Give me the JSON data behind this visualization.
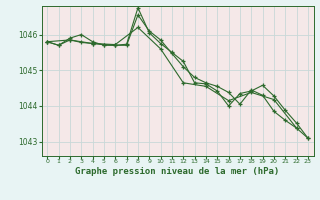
{
  "background_color": "#e8f4f4",
  "plot_bg_color": "#f5e8e8",
  "grid_color": "#c8d8d8",
  "line_color": "#2d6a2d",
  "title": "Graphe pression niveau de la mer (hPa)",
  "xlabel_fontsize": 6.5,
  "ylim": [
    1042.6,
    1046.8
  ],
  "xlim": [
    -0.5,
    23.5
  ],
  "yticks": [
    1043,
    1044,
    1045,
    1046
  ],
  "xticks": [
    0,
    1,
    2,
    3,
    4,
    5,
    6,
    7,
    8,
    9,
    10,
    11,
    12,
    13,
    14,
    15,
    16,
    17,
    18,
    19,
    20,
    21,
    22,
    23
  ],
  "series": [
    {
      "x": [
        0,
        1,
        2,
        3,
        4,
        5,
        6,
        7,
        8,
        9,
        10,
        11,
        12,
        13,
        14,
        15,
        16,
        17,
        18,
        19,
        20,
        21,
        22,
        23
      ],
      "y": [
        1045.8,
        1045.7,
        1045.9,
        1046.0,
        1045.8,
        1045.7,
        1045.7,
        1045.7,
        1046.55,
        1046.1,
        1045.85,
        1045.47,
        1045.1,
        1044.8,
        1044.65,
        1044.55,
        1044.38,
        1044.05,
        1044.45,
        1044.3,
        1043.85,
        1043.6,
        1043.38,
        1043.1
      ]
    },
    {
      "x": [
        0,
        1,
        2,
        3,
        4,
        5,
        6,
        7,
        8,
        9,
        10,
        11,
        12,
        13,
        14,
        15,
        16,
        17,
        18,
        19,
        20,
        21,
        22,
        23
      ],
      "y": [
        1045.8,
        1045.7,
        1045.85,
        1045.78,
        1045.75,
        1045.72,
        1045.7,
        1045.73,
        1046.75,
        1046.05,
        1045.75,
        1045.5,
        1045.25,
        1044.65,
        1044.62,
        1044.42,
        1044.0,
        1044.35,
        1044.42,
        1044.58,
        1044.28,
        1043.88,
        1043.52,
        1043.1
      ]
    },
    {
      "x": [
        0,
        2,
        4,
        6,
        8,
        10,
        12,
        14,
        16,
        18,
        20,
        22
      ],
      "y": [
        1045.8,
        1045.85,
        1045.75,
        1045.72,
        1046.2,
        1045.6,
        1044.65,
        1044.55,
        1044.15,
        1044.38,
        1044.18,
        1043.38
      ]
    }
  ]
}
